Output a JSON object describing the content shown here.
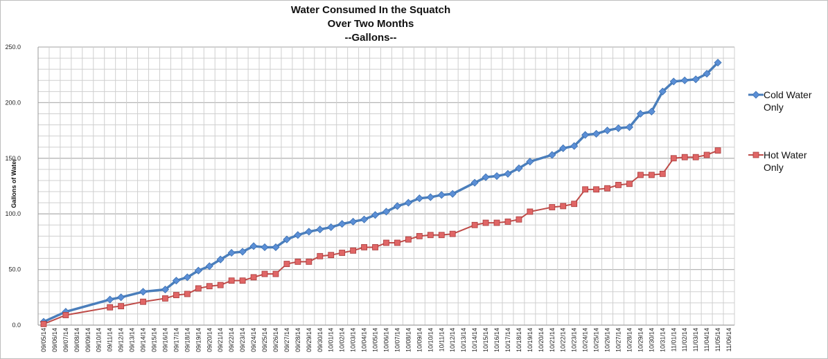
{
  "chart_data": {
    "type": "line",
    "title": [
      "Water Consumed In the Squatch",
      "Over Two Months",
      "--Gallons--"
    ],
    "xlabel": "",
    "ylabel": "Gallons of Water",
    "ylim": [
      0,
      250
    ],
    "yticks": [
      "0.0",
      "50.0",
      "100.0",
      "150.0",
      "200.0",
      "250.0"
    ],
    "ytick_values": [
      0,
      50,
      100,
      150,
      200,
      250
    ],
    "minor_grid_step": 10,
    "grid": true,
    "legend_position": "right",
    "categories": [
      "09/05/14",
      "09/06/14",
      "09/07/14",
      "09/08/14",
      "09/09/14",
      "09/10/14",
      "09/11/14",
      "09/12/14",
      "09/13/14",
      "09/14/14",
      "09/15/14",
      "09/16/14",
      "09/17/14",
      "09/18/14",
      "09/19/14",
      "09/20/14",
      "09/21/14",
      "09/22/14",
      "09/23/14",
      "09/24/14",
      "09/25/14",
      "09/26/14",
      "09/27/14",
      "09/28/14",
      "09/29/14",
      "09/30/14",
      "10/01/14",
      "10/02/14",
      "10/03/14",
      "10/04/14",
      "10/05/14",
      "10/06/14",
      "10/07/14",
      "10/08/14",
      "10/09/14",
      "10/10/14",
      "10/11/14",
      "10/12/14",
      "10/13/14",
      "10/14/14",
      "10/15/14",
      "10/16/14",
      "10/17/14",
      "10/18/14",
      "10/19/14",
      "10/20/14",
      "10/21/14",
      "10/22/14",
      "10/23/14",
      "10/24/14",
      "10/25/14",
      "10/26/14",
      "10/27/14",
      "10/28/14",
      "10/29/14",
      "10/30/14",
      "10/31/14",
      "11/01/14",
      "11/02/14",
      "11/03/14",
      "11/04/14",
      "11/05/14",
      "11/06/14"
    ],
    "series": [
      {
        "name": "Cold Water Only",
        "legend_lines": [
          "Cold Water",
          "Only"
        ],
        "color": "#4a7ebb",
        "marker_color": "#5b8fd6",
        "marker": "diamond",
        "values": [
          3,
          null,
          12,
          null,
          null,
          null,
          23,
          25,
          null,
          30,
          null,
          32,
          40,
          43,
          49,
          53,
          59,
          65,
          66,
          71,
          70,
          70,
          77,
          81,
          84,
          86,
          88,
          91,
          93,
          95,
          99,
          102,
          107,
          110,
          114,
          115,
          117,
          118,
          null,
          128,
          133,
          134,
          136,
          141,
          147,
          null,
          153,
          159,
          161,
          171,
          172,
          175,
          177,
          178,
          190,
          192,
          210,
          219,
          220,
          221,
          226,
          236,
          null
        ]
      },
      {
        "name": "Hot Water Only",
        "legend_lines": [
          "Hot Water",
          "Only"
        ],
        "color": "#be4b48",
        "marker_color": "#e06666",
        "marker": "square",
        "values": [
          1,
          null,
          9,
          null,
          null,
          null,
          16,
          17,
          null,
          21,
          null,
          24,
          27,
          28,
          33,
          35,
          36,
          40,
          40,
          43,
          46,
          46,
          55,
          57,
          57,
          62,
          63,
          65,
          67,
          70,
          70,
          74,
          74,
          77,
          80,
          81,
          81,
          82,
          null,
          90,
          92,
          92,
          93,
          95,
          102,
          null,
          106,
          107,
          109,
          122,
          122,
          123,
          126,
          127,
          135,
          135,
          136,
          150,
          151,
          151,
          153,
          157,
          null
        ]
      }
    ]
  }
}
